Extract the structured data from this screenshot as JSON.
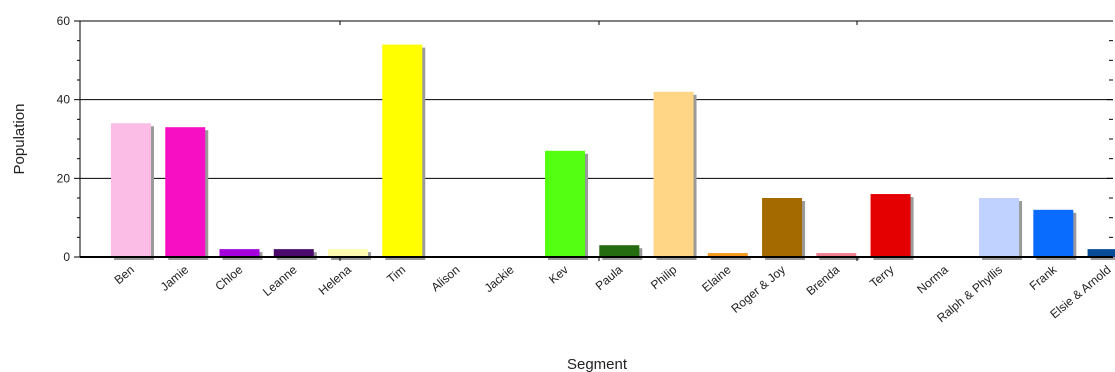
{
  "chart_data": {
    "type": "bar",
    "xlabel": "Segment",
    "ylabel": "Population",
    "ylim": [
      0,
      60
    ],
    "yticks": [
      "0",
      "20",
      "40",
      "60"
    ],
    "grid": true,
    "legend": "none",
    "categories": [
      "Ben",
      "Jamie",
      "Chloe",
      "Leanne",
      "Helena",
      "Tim",
      "Alison",
      "Jackie",
      "Kev",
      "Paula",
      "Philip",
      "Elaine",
      "Roger & Joy",
      "Brenda",
      "Terry",
      "Norma",
      "Ralph & Phyllis",
      "Frank",
      "Elsie & Arnold"
    ],
    "values": [
      34,
      33,
      2,
      2,
      2,
      54,
      0,
      0,
      27,
      3,
      42,
      1,
      15,
      1,
      16,
      0,
      15,
      12,
      2
    ],
    "colors": [
      "#fbbde6",
      "#f70fc3",
      "#a300dd",
      "#4b0a6b",
      "#fffbb0",
      "#ffff00",
      "#cccccc",
      "#cccccc",
      "#55ff11",
      "#256b10",
      "#ffd586",
      "#f49a1f",
      "#a46a00",
      "#f08090",
      "#e50000",
      "#cccccc",
      "#c0d2ff",
      "#0a6bff",
      "#064a98"
    ]
  }
}
